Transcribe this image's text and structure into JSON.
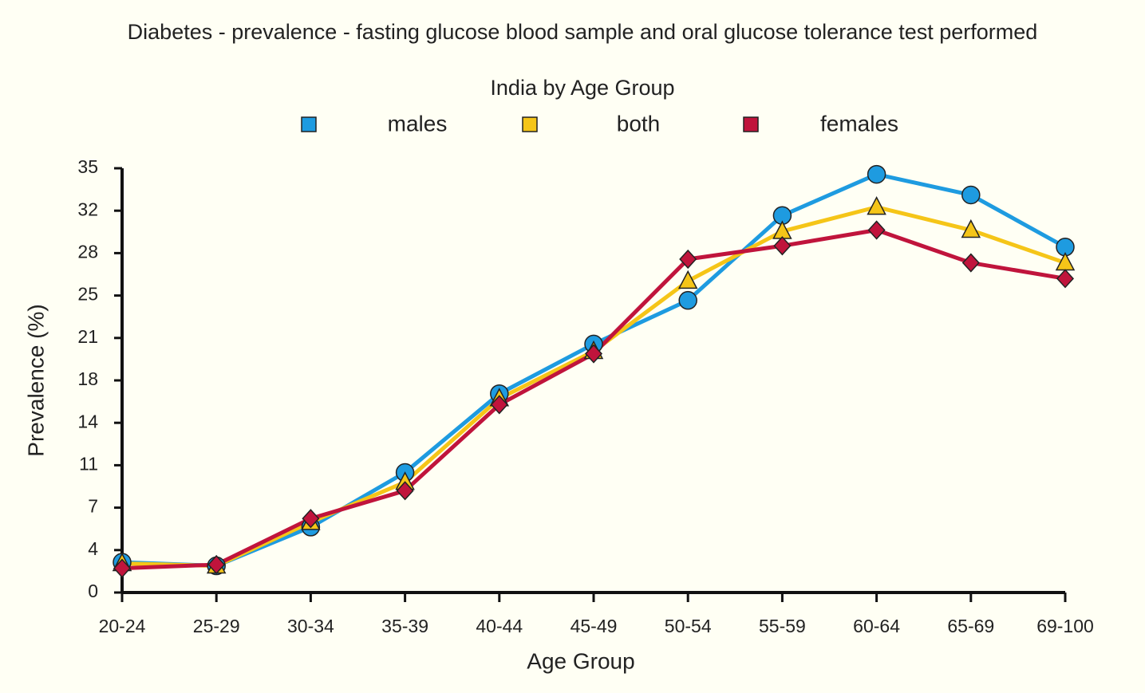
{
  "chart_data": {
    "type": "line",
    "title": "Diabetes - prevalence - fasting glucose blood sample and oral glucose tolerance test performed",
    "subtitle": "India by Age Group",
    "x_label": "Age Group",
    "y_label": "Prevalence (%)",
    "categories": [
      "20-24",
      "25-29",
      "30-34",
      "35-39",
      "40-44",
      "45-49",
      "50-54",
      "55-59",
      "60-64",
      "65-69",
      "69-100"
    ],
    "series": [
      {
        "name": "males",
        "color": "#1e9be0",
        "marker": "circle",
        "values": [
          2.5,
          2.2,
          5.4,
          9.9,
          16.4,
          20.5,
          24.1,
          31.1,
          34.5,
          32.8,
          28.5
        ]
      },
      {
        "name": "both",
        "color": "#f5c518",
        "marker": "triangle",
        "values": [
          2.4,
          2.2,
          5.8,
          9.1,
          16.0,
          19.9,
          25.7,
          29.8,
          31.8,
          29.9,
          27.2
        ]
      },
      {
        "name": "females",
        "color": "#c0143c",
        "marker": "diamond",
        "values": [
          2.0,
          2.3,
          6.1,
          8.4,
          15.5,
          19.7,
          27.5,
          28.6,
          29.9,
          27.2,
          25.9
        ]
      }
    ],
    "ylim": [
      0,
      35
    ],
    "yticks": [
      0,
      {
        "value": 3.5,
        "label": "4"
      },
      7,
      {
        "value": 10.5,
        "label": "11"
      },
      14,
      {
        "value": 17.5,
        "label": "18"
      },
      21,
      {
        "value": 24.5,
        "label": "25"
      },
      28,
      {
        "value": 31.5,
        "label": "32"
      },
      35
    ],
    "legend": "top"
  }
}
